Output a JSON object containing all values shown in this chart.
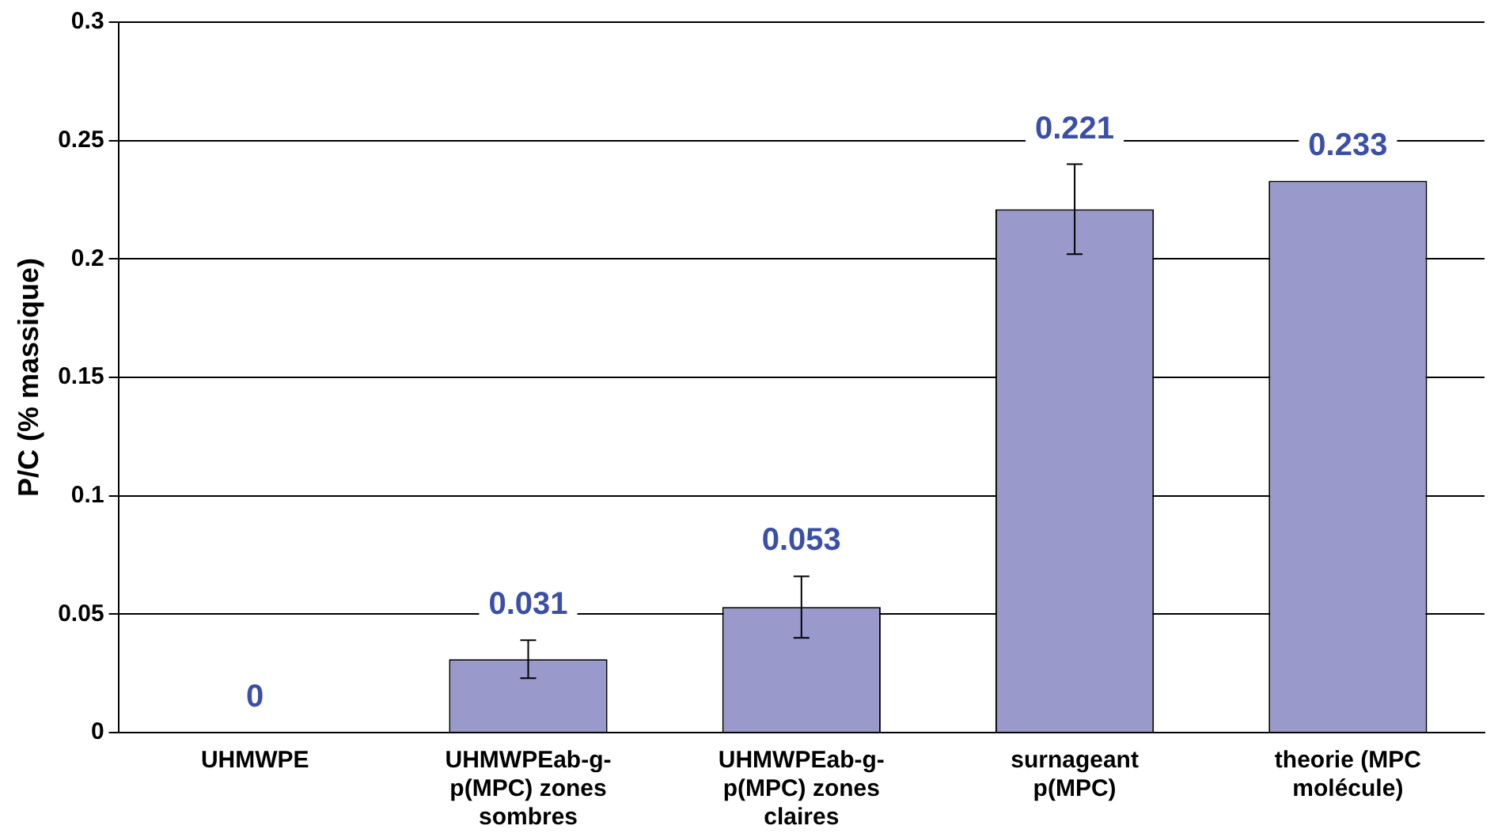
{
  "chart_data": {
    "type": "bar",
    "ylabel": "P/C (% massique)",
    "categories": [
      "UHMWPE",
      "UHMWPEab-g-p(MPC) zones sombres",
      "UHMWPEab-g-p(MPC) zones claires",
      "surnageant p(MPC)",
      "theorie (MPC molécule)"
    ],
    "values": [
      0,
      0.031,
      0.053,
      0.221,
      0.233
    ],
    "errors": [
      null,
      0.008,
      0.013,
      0.019,
      null
    ],
    "color": "#9999cc",
    "ylim": [
      0,
      0.3
    ],
    "yticks": [
      0,
      0.05,
      0.1,
      0.15,
      0.2,
      0.25,
      0.3
    ],
    "grid": "y",
    "legend": false,
    "data_labels": true
  }
}
